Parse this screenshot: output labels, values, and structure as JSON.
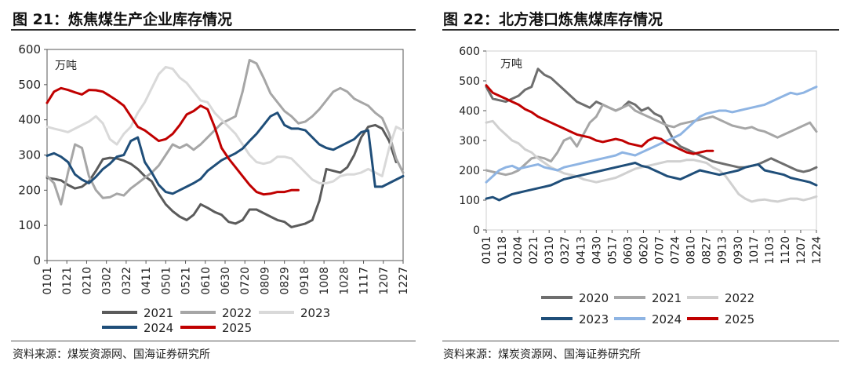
{
  "chart_data": [
    {
      "type": "line",
      "title": "图 21：炼焦煤生产企业库存情况",
      "unit_label": "万吨",
      "source": "资料来源：煤炭资源网、国海证券研究所",
      "ylim": [
        0,
        600
      ],
      "yticks": [
        "0",
        "100",
        "200",
        "300",
        "400",
        "500",
        "600"
      ],
      "x_labels": [
        "0101",
        "0121",
        "0210",
        "0302",
        "0322",
        "0411",
        "0501",
        "0521",
        "0610",
        "0630",
        "0720",
        "0809",
        "0829",
        "0918",
        "1008",
        "1028",
        "1117",
        "1207",
        "1227"
      ],
      "x_count": 52,
      "series": [
        {
          "name": "2021",
          "color": "#5b5b5b",
          "values": [
            235,
            232,
            228,
            215,
            205,
            210,
            225,
            255,
            288,
            292,
            290,
            284,
            275,
            260,
            240,
            225,
            190,
            160,
            140,
            125,
            115,
            130,
            160,
            150,
            138,
            130,
            110,
            105,
            115,
            145,
            145,
            135,
            125,
            115,
            110,
            95,
            100,
            105,
            115,
            170,
            260,
            255,
            250,
            265,
            300,
            350,
            380,
            385,
            375,
            340,
            280,
            null
          ]
        },
        {
          "name": "2022",
          "color": "#a6a6a6",
          "values": [
            240,
            220,
            160,
            250,
            330,
            320,
            240,
            200,
            178,
            180,
            190,
            185,
            205,
            220,
            235,
            250,
            270,
            300,
            330,
            320,
            330,
            315,
            330,
            350,
            370,
            390,
            400,
            410,
            480,
            570,
            560,
            520,
            475,
            450,
            425,
            410,
            390,
            395,
            410,
            430,
            455,
            480,
            490,
            480,
            460,
            450,
            440,
            420,
            405,
            360,
            290,
            250
          ]
        },
        {
          "name": "2023",
          "color": "#d9d9d9",
          "values": [
            380,
            375,
            370,
            365,
            375,
            385,
            395,
            410,
            390,
            345,
            330,
            360,
            380,
            420,
            450,
            490,
            530,
            550,
            545,
            520,
            505,
            480,
            455,
            450,
            420,
            400,
            380,
            360,
            330,
            300,
            280,
            275,
            280,
            295,
            295,
            290,
            270,
            250,
            230,
            220,
            220,
            225,
            240,
            245,
            245,
            250,
            260,
            250,
            240,
            320,
            380,
            370
          ]
        },
        {
          "name": "2024",
          "color": "#1f4e79",
          "values": [
            298,
            305,
            295,
            280,
            245,
            230,
            220,
            238,
            260,
            275,
            295,
            300,
            340,
            350,
            280,
            250,
            215,
            195,
            190,
            200,
            210,
            220,
            232,
            255,
            270,
            285,
            295,
            305,
            318,
            340,
            360,
            385,
            410,
            420,
            385,
            375,
            375,
            370,
            350,
            330,
            320,
            315,
            325,
            335,
            345,
            365,
            370,
            210,
            210,
            220,
            230,
            240
          ]
        },
        {
          "name": "2025",
          "color": "#c00000",
          "values": [
            448,
            480,
            490,
            485,
            478,
            472,
            485,
            484,
            480,
            468,
            455,
            440,
            410,
            380,
            370,
            355,
            340,
            345,
            360,
            385,
            415,
            425,
            440,
            430,
            380,
            320,
            290,
            265,
            240,
            215,
            195,
            188,
            190,
            195,
            195,
            200,
            200,
            null,
            null,
            null,
            null,
            null,
            null,
            null,
            null,
            null,
            null,
            null,
            null,
            null,
            null,
            null
          ]
        }
      ],
      "legend": [
        [
          "2021",
          "2022",
          "2023"
        ],
        [
          "2024",
          "2025"
        ]
      ]
    },
    {
      "type": "line",
      "title": "图 22：北方港口炼焦煤库存情况",
      "unit_label": "万吨",
      "source": "资料来源：煤炭资源网、国海证券研究所",
      "ylim": [
        0,
        600
      ],
      "yticks": [
        "0",
        "100",
        "200",
        "300",
        "400",
        "500",
        "600"
      ],
      "x_labels": [
        "0101",
        "0118",
        "0204",
        "0221",
        "0310",
        "0327",
        "0413",
        "0430",
        "0517",
        "0603",
        "0620",
        "0707",
        "0724",
        "0810",
        "0827",
        "0913",
        "0930",
        "1017",
        "1103",
        "1120",
        "1207",
        "1224"
      ],
      "x_count": 52,
      "series": [
        {
          "name": "2020",
          "color": "#6e6e6e",
          "values": [
            480,
            440,
            435,
            430,
            440,
            450,
            470,
            480,
            540,
            520,
            510,
            490,
            470,
            450,
            430,
            420,
            410,
            430,
            420,
            410,
            400,
            410,
            430,
            420,
            400,
            410,
            390,
            380,
            340,
            300,
            280,
            270,
            260,
            250,
            240,
            230,
            225,
            220,
            215,
            210,
            210,
            215,
            220,
            230,
            240,
            230,
            220,
            210,
            200,
            195,
            200,
            210
          ]
        },
        {
          "name": "2021",
          "color": "#a6a6a6",
          "values": [
            200,
            195,
            190,
            185,
            190,
            200,
            220,
            240,
            245,
            240,
            230,
            260,
            300,
            310,
            280,
            320,
            360,
            380,
            420,
            410,
            400,
            410,
            420,
            400,
            390,
            380,
            370,
            360,
            350,
            345,
            355,
            360,
            365,
            370,
            375,
            380,
            370,
            360,
            350,
            345,
            340,
            345,
            335,
            330,
            320,
            310,
            320,
            330,
            340,
            350,
            360,
            330
          ]
        },
        {
          "name": "2022",
          "color": "#d0d0d0",
          "values": [
            360,
            365,
            340,
            320,
            300,
            290,
            270,
            260,
            240,
            225,
            210,
            200,
            190,
            185,
            180,
            170,
            165,
            160,
            165,
            170,
            175,
            185,
            195,
            205,
            210,
            215,
            220,
            225,
            230,
            230,
            230,
            235,
            235,
            230,
            225,
            210,
            200,
            180,
            150,
            120,
            105,
            95,
            100,
            102,
            98,
            95,
            100,
            105,
            105,
            100,
            105,
            112
          ]
        },
        {
          "name": "2023",
          "color": "#1f4e79",
          "values": [
            105,
            110,
            100,
            110,
            120,
            125,
            130,
            135,
            140,
            145,
            150,
            160,
            170,
            175,
            180,
            185,
            190,
            195,
            200,
            205,
            210,
            215,
            220,
            225,
            215,
            210,
            200,
            190,
            180,
            175,
            170,
            180,
            190,
            200,
            195,
            190,
            185,
            190,
            195,
            200,
            210,
            215,
            220,
            200,
            195,
            190,
            185,
            175,
            170,
            165,
            160,
            150
          ]
        },
        {
          "name": "2024",
          "color": "#8eb4e3",
          "values": [
            160,
            180,
            200,
            210,
            215,
            205,
            210,
            215,
            220,
            210,
            205,
            200,
            210,
            215,
            220,
            225,
            230,
            235,
            240,
            245,
            250,
            260,
            255,
            250,
            260,
            270,
            280,
            290,
            300,
            310,
            320,
            340,
            360,
            380,
            390,
            395,
            400,
            400,
            395,
            400,
            405,
            410,
            415,
            420,
            430,
            440,
            450,
            460,
            455,
            460,
            470,
            480
          ]
        },
        {
          "name": "2025",
          "color": "#c00000",
          "values": [
            485,
            460,
            450,
            440,
            430,
            420,
            405,
            395,
            380,
            370,
            360,
            350,
            340,
            330,
            320,
            315,
            310,
            300,
            295,
            300,
            305,
            300,
            290,
            285,
            280,
            300,
            310,
            305,
            290,
            280,
            270,
            260,
            255,
            260,
            265,
            265,
            null,
            null,
            null,
            null,
            null,
            null,
            null,
            null,
            null,
            null,
            null,
            null,
            null,
            null,
            null,
            null
          ]
        }
      ],
      "legend": [
        [
          "2020",
          "2021",
          "2022"
        ],
        [
          "2023",
          "2024",
          "2025"
        ]
      ]
    }
  ]
}
